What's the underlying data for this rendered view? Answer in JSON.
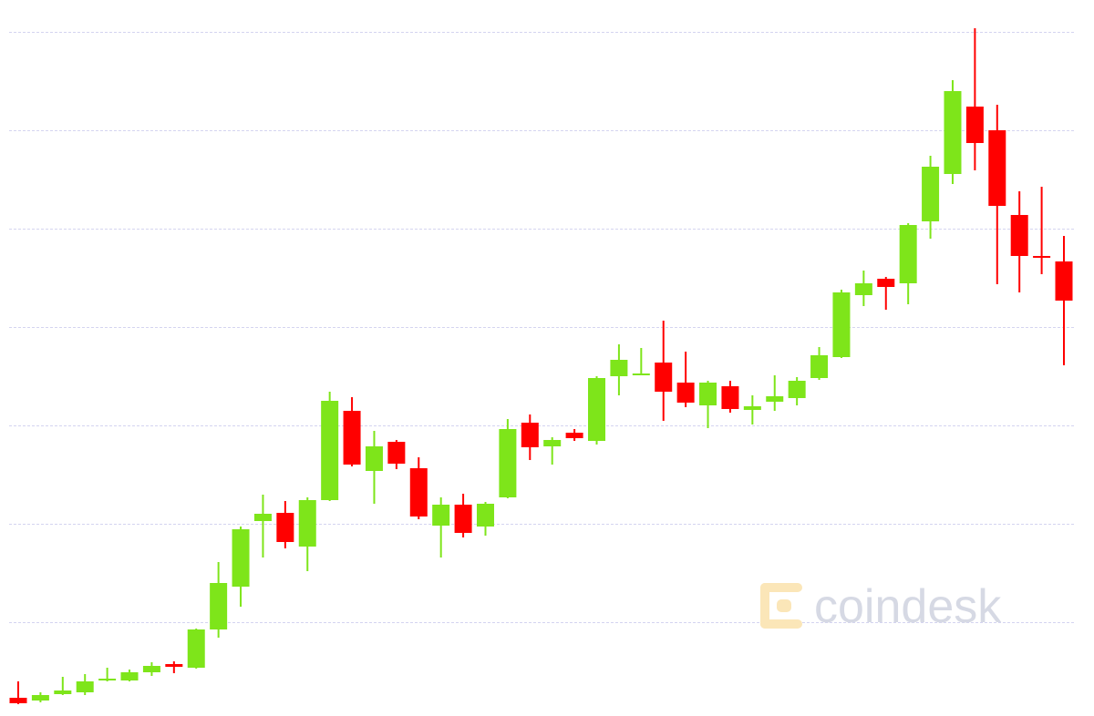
{
  "chart_data": {
    "type": "candlestick",
    "watermark": "coindesk",
    "categories": [
      null,
      null,
      null,
      null,
      null,
      null,
      null,
      null,
      null,
      null,
      null,
      null,
      null,
      null,
      null,
      null,
      null,
      null,
      null,
      null,
      null,
      null,
      null,
      null,
      null,
      null,
      null,
      null,
      null,
      null,
      null,
      null,
      null,
      null,
      null,
      null,
      null,
      null,
      null,
      null,
      null,
      null,
      null,
      null,
      null,
      null,
      null,
      null
    ],
    "open": [
      25,
      22,
      29,
      31,
      45,
      44,
      53,
      62,
      58,
      100,
      147,
      219,
      228,
      191,
      242,
      340,
      274,
      306,
      277,
      214,
      237,
      213,
      245,
      327,
      301,
      316,
      307,
      378,
      380,
      393,
      371,
      346,
      367,
      341,
      350,
      354,
      376,
      399,
      467,
      485,
      480,
      548,
      600,
      674,
      648,
      555,
      510,
      504
    ],
    "high": [
      43,
      31,
      48,
      51,
      58,
      56,
      64,
      65,
      101,
      174,
      213,
      248,
      241,
      245,
      361,
      355,
      318,
      308,
      289,
      245,
      249,
      240,
      331,
      336,
      311,
      320,
      378,
      413,
      409,
      439,
      405,
      373,
      373,
      357,
      379,
      377,
      410,
      473,
      494,
      487,
      546,
      620,
      703,
      760,
      676,
      581,
      586,
      532
    ],
    "low": [
      18,
      20,
      28,
      28,
      43,
      43,
      49,
      52,
      57,
      91,
      125,
      179,
      189,
      164,
      241,
      279,
      238,
      276,
      221,
      179,
      201,
      203,
      244,
      286,
      281,
      307,
      303,
      357,
      379,
      329,
      344,
      321,
      338,
      325,
      340,
      346,
      374,
      398,
      455,
      451,
      457,
      529,
      589,
      604,
      479,
      470,
      490,
      390
    ],
    "close": [
      19,
      28,
      33,
      43,
      46,
      53,
      60,
      59,
      100,
      151,
      210,
      227,
      196,
      242,
      351,
      281,
      301,
      282,
      224,
      237,
      206,
      238,
      320,
      300,
      308,
      310,
      376,
      396,
      381,
      361,
      349,
      371,
      342,
      345,
      356,
      373,
      401,
      470,
      480,
      476,
      544,
      608,
      691,
      634,
      565,
      510,
      509,
      461
    ],
    "up_color": "#7ee51a",
    "down_color": "#ff0000",
    "ylim": [
      0,
      791
    ],
    "yticks": [
      108,
      216,
      324,
      432,
      540,
      648,
      756
    ],
    "grid": true
  }
}
